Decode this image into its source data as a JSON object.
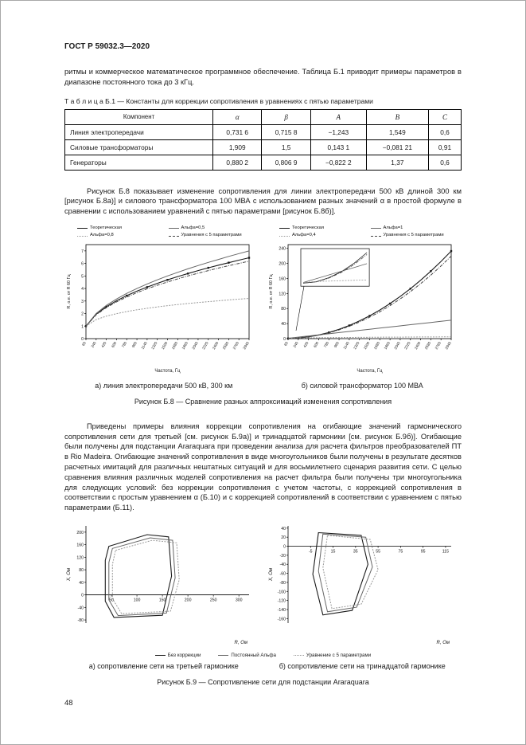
{
  "header": {
    "doc_code": "ГОСТ Р 59032.3—2020"
  },
  "paragraphs": {
    "intro": "ритмы и коммерческое математическое программное обеспечение. Таблица Б.1 приводит примеры параметров в диапазоне постоянного тока до 3 кГц.",
    "fig_b8_intro": "Рисунок Б.8 показывает изменение сопротивления для линии электропередачи 500 кВ длиной 300 км [рисунок Б.8а)] и силового трансформатора 100 МВА с использованием разных значений α в простой формуле в сравнении с использованием уравнений с пятью параметрами [рисунок Б.8б)].",
    "fig_b9_intro": "Приведены примеры влияния коррекции сопротивления на огибающие значений гармонического сопротивления сети для третьей [см. рисунок  Б.9а)] и тринадцатой гармоники [см. рисунок Б.9б)]. Огибающие были получены для подстанции Araraquara при проведении анализа для расчета фильтров преобразователей ПТ в Rio Madeira. Огибающие значений сопротивления в виде многоугольников были получены в результате десятков расчетных имитаций для различных нештатных ситуаций и для восьмилетнего сценария развития сети. С целью сравнения влияния различных моделей сопротивления на расчет фильтра были получены три многоугольника для следующих условий: без коррекции сопротивления с учетом частоты, с коррекцией сопротивления в соответствии с простым уравнением α (Б.10) и с коррекцией сопротивлений в соответствии с уравнением с пятью параметрами (Б.11)."
  },
  "table_b1": {
    "caption": "Т а б л и ц а   Б.1 — Константы для коррекции сопротивления в уравнениях с пятью параметрами",
    "headers": [
      "Компонент",
      "α",
      "β",
      "A",
      "B",
      "C"
    ],
    "rows": [
      [
        "Линия электропередачи",
        "0,731 6",
        "0,715 8",
        "−1,243",
        "1,549",
        "0,6"
      ],
      [
        "Силовые трансформаторы",
        "1,909",
        "1,5",
        "0,143 1",
        "−0,081 21",
        "0,91"
      ],
      [
        "Генераторы",
        "0,880 2",
        "0,806 9",
        "−0,822 2",
        "1,37",
        "0,6"
      ]
    ]
  },
  "figure_b8": {
    "caption_a": "а)  линия электропередачи 500 кВ, 300 км",
    "caption_b": "б)  силовой трансформатор 100 МВА",
    "title": "Рисунок Б.8 — Сравнение разных аппроксимаций изменения сопротивления"
  },
  "figure_b9": {
    "caption_a": "а)  сопротивление сети на третьей гармонике",
    "caption_b": "б)  сопротивление сети на тринадцатой гармонике",
    "title": "Рисунок Б.9 — Сопротивление сети для подстанции Araraquara"
  },
  "footer": {
    "page_number": "48"
  },
  "chart_data": [
    {
      "id": "b8a",
      "type": "line",
      "title": "линия электропередачи 500 кВ, 300 км",
      "xlabel": "Частота, Гц",
      "ylabel": "R, о.е. от R 60 Гц",
      "rotate_x_ticks": true,
      "x": [
        60,
        240,
        420,
        600,
        780,
        960,
        1140,
        1320,
        1500,
        1680,
        1860,
        2040,
        2220,
        2400,
        2580,
        2760,
        2940
      ],
      "xlim": [
        60,
        2940
      ],
      "ylim": [
        0,
        7.5
      ],
      "yticks": [
        0,
        1,
        2,
        3,
        4,
        5,
        6,
        7
      ],
      "series": [
        {
          "name": "Теоретическая",
          "marker": true,
          "values": [
            1,
            1.95,
            2.54,
            3.02,
            3.43,
            3.79,
            4.11,
            4.41,
            4.69,
            4.95,
            5.19,
            5.43,
            5.65,
            5.86,
            6.06,
            6.26,
            6.45
          ]
        },
        {
          "name": "Альфа=0,5",
          "values": [
            1,
            2,
            2.65,
            3.16,
            3.61,
            4,
            4.36,
            4.69,
            5,
            5.29,
            5.57,
            5.83,
            6.08,
            6.32,
            6.56,
            6.78,
            7
          ]
        },
        {
          "name": "Альфа=0,8",
          "values": [
            1,
            1.52,
            1.79,
            1.99,
            2.16,
            2.3,
            2.42,
            2.53,
            2.63,
            2.72,
            2.8,
            2.88,
            2.95,
            3.02,
            3.09,
            3.15,
            3.21
          ]
        },
        {
          "name": "Уравнения с 5 параметрами",
          "values": [
            1,
            1.9,
            2.47,
            2.93,
            3.32,
            3.67,
            3.98,
            4.26,
            4.52,
            4.77,
            5,
            5.22,
            5.43,
            5.63,
            5.82,
            6,
            6.18
          ]
        }
      ]
    },
    {
      "id": "b8b",
      "type": "line",
      "title": "силовой трансформатор 100 МВА",
      "xlabel": "Частота, Гц",
      "ylabel": "R, о.е. от R 60 Гц",
      "rotate_x_ticks": true,
      "inset": true,
      "x": [
        60,
        240,
        420,
        600,
        780,
        960,
        1140,
        1320,
        1500,
        1680,
        1860,
        2040,
        2220,
        2400,
        2580,
        2760,
        2940
      ],
      "xlim": [
        60,
        2940
      ],
      "ylim": [
        0,
        250
      ],
      "yticks": [
        0,
        40,
        80,
        120,
        160,
        200,
        240
      ],
      "series": [
        {
          "name": "Теоретическая",
          "marker": true,
          "values": [
            0.5,
            1.6,
            4.8,
            9.7,
            16.4,
            24.8,
            35,
            47,
            60.6,
            76.1,
            93.2,
            112.1,
            132.8,
            155.2,
            179.4,
            205.3,
            232.9
          ]
        },
        {
          "name": "Альфа=1",
          "values": [
            1,
            4,
            7,
            10,
            13,
            16,
            19,
            22,
            25,
            28,
            31,
            34,
            37,
            40,
            43,
            46,
            49
          ]
        },
        {
          "name": "Альфа=0,4",
          "values": [
            1,
            1.74,
            2.18,
            2.51,
            2.79,
            3.03,
            3.25,
            3.44,
            3.62,
            3.79,
            3.95,
            4.1,
            4.24,
            4.37,
            4.5,
            4.62,
            4.74
          ]
        },
        {
          "name": "Уравнения с 5 параметрами",
          "values": [
            0.5,
            1.5,
            4.5,
            9.1,
            15.4,
            23.3,
            32.9,
            44.1,
            57,
            71.5,
            87.7,
            105.5,
            125,
            146.1,
            168.9,
            193.3,
            219.4
          ]
        }
      ]
    },
    {
      "id": "b9a",
      "type": "polygon",
      "title": "сопротивление сети на третьей гармонике",
      "xlabel": "R, Ом",
      "ylabel": "X, Ом",
      "xlim": [
        0,
        320
      ],
      "xticks": [
        50,
        100,
        150,
        200,
        250,
        300
      ],
      "ylim": [
        -90,
        220
      ],
      "yticks": [
        200,
        160,
        120,
        80,
        40,
        0,
        -40,
        -80
      ],
      "series": [
        {
          "name": "Без коррекции",
          "points": [
            [
              45,
              155
            ],
            [
              120,
              192
            ],
            [
              162,
              185
            ],
            [
              168,
              60
            ],
            [
              150,
              -65
            ],
            [
              55,
              -72
            ],
            [
              38,
              -20
            ],
            [
              38,
              110
            ]
          ]
        },
        {
          "name": "Постоянный Альфа",
          "points": [
            [
              52,
              148
            ],
            [
              126,
              182
            ],
            [
              170,
              174
            ],
            [
              175,
              54
            ],
            [
              158,
              -58
            ],
            [
              63,
              -66
            ],
            [
              45,
              -16
            ],
            [
              45,
              103
            ]
          ]
        },
        {
          "name": "Уравнение с 5 параметрами",
          "points": [
            [
              58,
              142
            ],
            [
              130,
              174
            ],
            [
              178,
              166
            ],
            [
              183,
              48
            ],
            [
              166,
              -52
            ],
            [
              70,
              -60
            ],
            [
              52,
              -12
            ],
            [
              52,
              97
            ]
          ]
        }
      ]
    },
    {
      "id": "b9b",
      "type": "polygon",
      "title": "сопротивление сети на тринадцатой гармонике",
      "xlabel": "R, Ом",
      "ylabel": "X, Ом",
      "xlim": [
        -25,
        120
      ],
      "xticks": [
        -5,
        15,
        35,
        55,
        75,
        95,
        115
      ],
      "ylim": [
        -170,
        45
      ],
      "yticks": [
        40,
        20,
        0,
        -20,
        -40,
        -60,
        -80,
        -100,
        -120,
        -140,
        -160
      ],
      "series": [
        {
          "name": "Без коррекции",
          "points": [
            [
              2,
              30
            ],
            [
              40,
              24
            ],
            [
              46,
              -40
            ],
            [
              32,
              -142
            ],
            [
              6,
              -152
            ],
            [
              -3,
              -62
            ]
          ]
        },
        {
          "name": "Постоянный Альфа",
          "points": [
            [
              6,
              27
            ],
            [
              44,
              20
            ],
            [
              50,
              -46
            ],
            [
              36,
              -135
            ],
            [
              10,
              -145
            ],
            [
              2,
              -55
            ]
          ]
        },
        {
          "name": "Уравнение с 5 параметрами",
          "points": [
            [
              10,
              24
            ],
            [
              48,
              15
            ],
            [
              55,
              -52
            ],
            [
              40,
              -128
            ],
            [
              14,
              -138
            ],
            [
              6,
              -48
            ]
          ]
        }
      ]
    }
  ]
}
